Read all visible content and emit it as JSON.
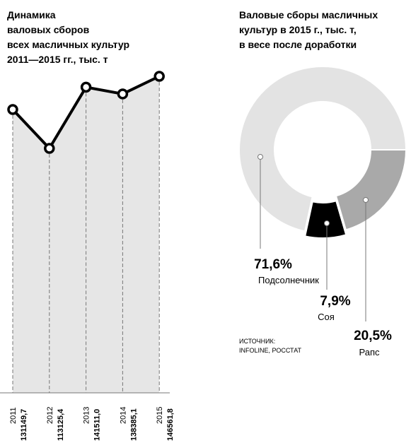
{
  "chart_data": [
    {
      "type": "line",
      "title": [
        "Динамика",
        "валовых сборов",
        "всех масличных культур",
        "2011—2015 гг., тыс. т"
      ],
      "categories": [
        "2011",
        "2012",
        "2013",
        "2014",
        "2015"
      ],
      "values": [
        131149.7,
        113125.4,
        141511.0,
        138385.1,
        146561.8
      ],
      "value_labels": [
        "131149,7",
        "113125,4",
        "141511,0",
        "138385,1",
        "146561,8"
      ],
      "color": "#000000",
      "area_color": "#e6e6e6"
    },
    {
      "type": "donut",
      "title": [
        "Валовые сборы масличных",
        "культур в 2015 г., тыс. т,",
        "в весе после доработки"
      ],
      "categories": [
        "Подсолнечник",
        "Соя",
        "Рапс"
      ],
      "values": [
        71.6,
        7.9,
        20.5
      ],
      "value_labels": [
        "71,6%",
        "7,9%",
        "20,5%"
      ],
      "colors": [
        "#e3e3e3",
        "#000000",
        "#a9a9a9"
      ],
      "source": [
        "ИСТОЧНИК:",
        "INFOLINE, РОССТАТ"
      ]
    }
  ]
}
